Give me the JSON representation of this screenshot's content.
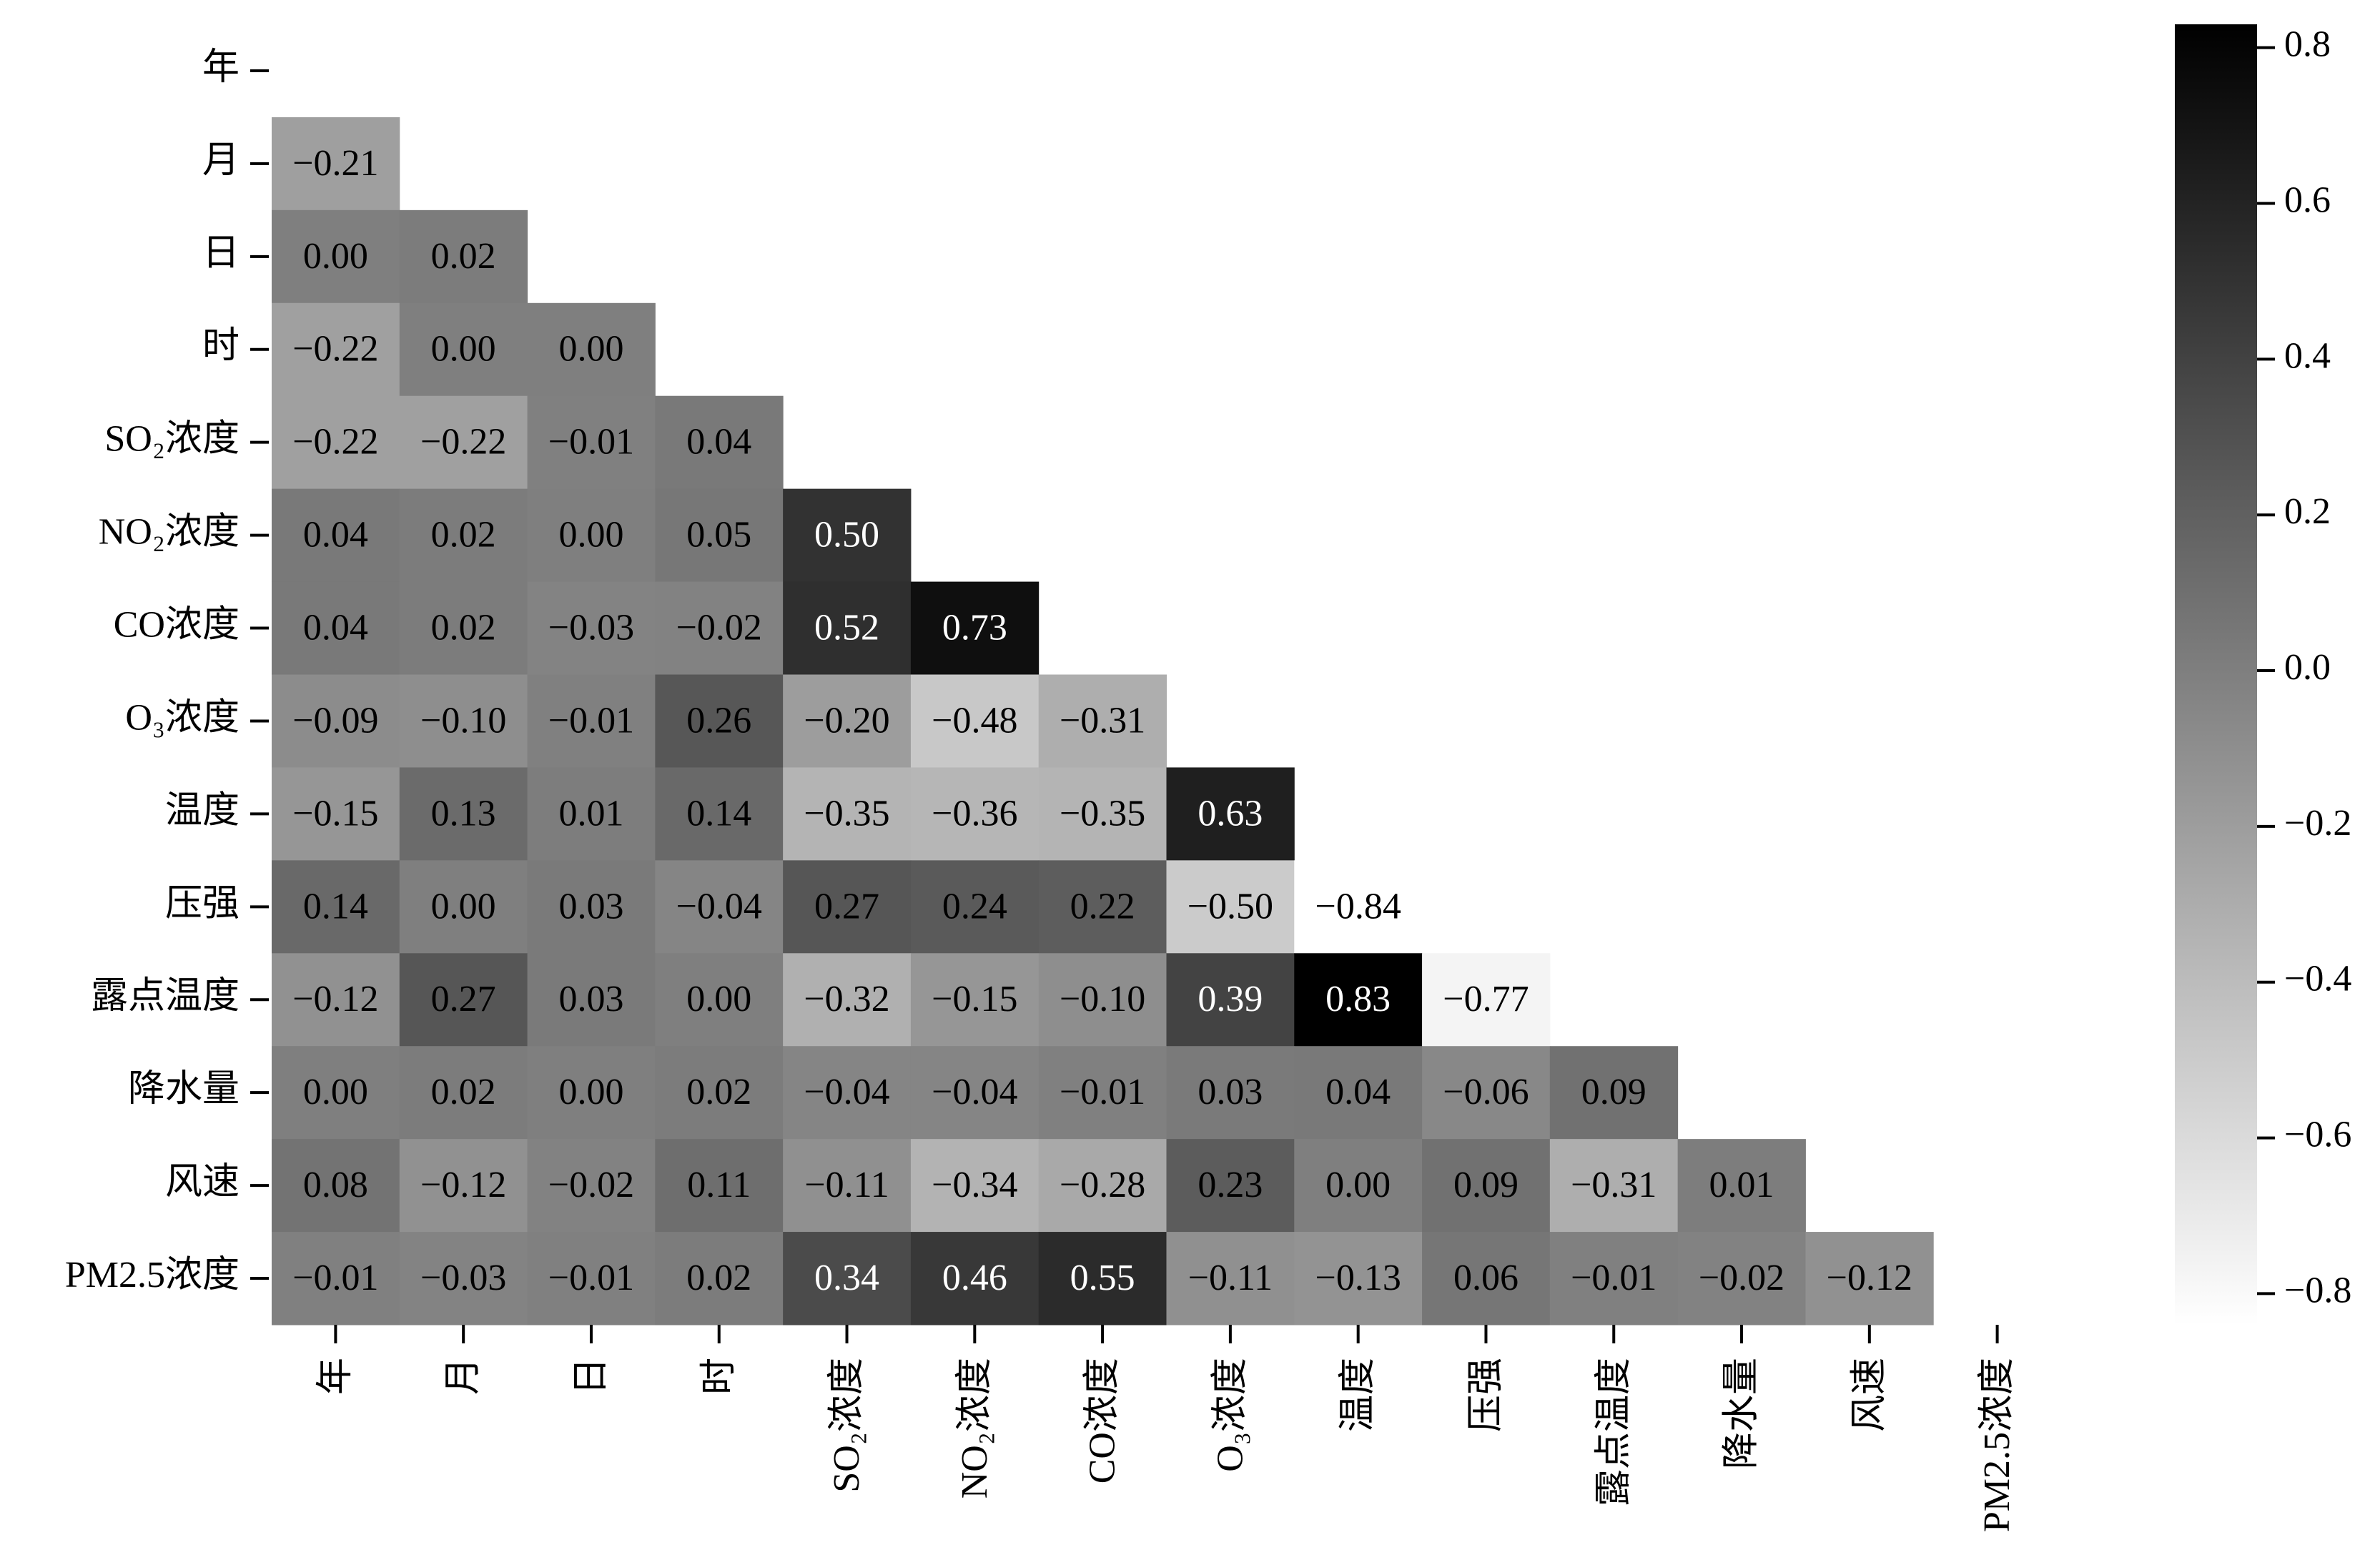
{
  "chart_data": {
    "type": "heatmap",
    "categories": [
      "年",
      "月",
      "日",
      "时",
      "SO₂浓度",
      "NO₂浓度",
      "CO浓度",
      "O₃浓度",
      "温度",
      "压强",
      "露点温度",
      "降水量",
      "风速",
      "PM2.5浓度"
    ],
    "values": [
      [
        null,
        null,
        null,
        null,
        null,
        null,
        null,
        null,
        null,
        null,
        null,
        null,
        null,
        null
      ],
      [
        -0.21,
        null,
        null,
        null,
        null,
        null,
        null,
        null,
        null,
        null,
        null,
        null,
        null,
        null
      ],
      [
        0.0,
        0.02,
        null,
        null,
        null,
        null,
        null,
        null,
        null,
        null,
        null,
        null,
        null,
        null
      ],
      [
        -0.22,
        0.0,
        0.0,
        null,
        null,
        null,
        null,
        null,
        null,
        null,
        null,
        null,
        null,
        null
      ],
      [
        -0.22,
        -0.22,
        -0.01,
        0.04,
        null,
        null,
        null,
        null,
        null,
        null,
        null,
        null,
        null,
        null
      ],
      [
        0.04,
        0.02,
        0.0,
        0.05,
        0.5,
        null,
        null,
        null,
        null,
        null,
        null,
        null,
        null,
        null
      ],
      [
        0.04,
        0.02,
        -0.03,
        -0.02,
        0.52,
        0.73,
        null,
        null,
        null,
        null,
        null,
        null,
        null,
        null
      ],
      [
        -0.09,
        -0.1,
        -0.01,
        0.26,
        -0.2,
        -0.48,
        -0.31,
        null,
        null,
        null,
        null,
        null,
        null,
        null
      ],
      [
        -0.15,
        0.13,
        0.01,
        0.14,
        -0.35,
        -0.36,
        -0.35,
        0.63,
        null,
        null,
        null,
        null,
        null,
        null
      ],
      [
        0.14,
        0.0,
        0.03,
        -0.04,
        0.27,
        0.24,
        0.22,
        -0.5,
        -0.84,
        null,
        null,
        null,
        null,
        null
      ],
      [
        -0.12,
        0.27,
        0.03,
        0.0,
        -0.32,
        -0.15,
        -0.1,
        0.39,
        0.83,
        -0.77,
        null,
        null,
        null,
        null
      ],
      [
        0.0,
        0.02,
        0.0,
        0.02,
        -0.04,
        -0.04,
        -0.01,
        0.03,
        0.04,
        -0.06,
        0.09,
        null,
        null,
        null
      ],
      [
        0.08,
        -0.12,
        -0.02,
        0.11,
        -0.11,
        -0.34,
        -0.28,
        0.23,
        0.0,
        0.09,
        -0.31,
        0.01,
        null,
        null
      ],
      [
        -0.01,
        -0.03,
        -0.01,
        0.02,
        0.34,
        0.46,
        0.55,
        -0.11,
        -0.13,
        0.06,
        -0.01,
        -0.02,
        -0.12,
        null
      ]
    ],
    "value_labels": [
      [
        null,
        null,
        null,
        null,
        null,
        null,
        null,
        null,
        null,
        null,
        null,
        null,
        null,
        null
      ],
      [
        "−0.21",
        null,
        null,
        null,
        null,
        null,
        null,
        null,
        null,
        null,
        null,
        null,
        null,
        null
      ],
      [
        "0.00",
        "0.02",
        null,
        null,
        null,
        null,
        null,
        null,
        null,
        null,
        null,
        null,
        null,
        null
      ],
      [
        "−0.22",
        "0.00",
        "0.00",
        null,
        null,
        null,
        null,
        null,
        null,
        null,
        null,
        null,
        null,
        null
      ],
      [
        "−0.22",
        "−0.22",
        "−0.01",
        "0.04",
        null,
        null,
        null,
        null,
        null,
        null,
        null,
        null,
        null,
        null
      ],
      [
        "0.04",
        "0.02",
        "0.00",
        "0.05",
        "0.50",
        null,
        null,
        null,
        null,
        null,
        null,
        null,
        null,
        null
      ],
      [
        "0.04",
        "0.02",
        "−0.03",
        "−0.02",
        "0.52",
        "0.73",
        null,
        null,
        null,
        null,
        null,
        null,
        null,
        null
      ],
      [
        "−0.09",
        "−0.10",
        "−0.01",
        "0.26",
        "−0.20",
        "−0.48",
        "−0.31",
        null,
        null,
        null,
        null,
        null,
        null,
        null
      ],
      [
        "−0.15",
        "0.13",
        "0.01",
        "0.14",
        "−0.35",
        "−0.36",
        "−0.35",
        "0.63",
        null,
        null,
        null,
        null,
        null,
        null
      ],
      [
        "0.14",
        "0.00",
        "0.03",
        "−0.04",
        "0.27",
        "0.24",
        "0.22",
        "−0.50",
        "−0.84",
        null,
        null,
        null,
        null,
        null
      ],
      [
        "−0.12",
        "0.27",
        "0.03",
        "0.00",
        "−0.32",
        "−0.15",
        "−0.10",
        "0.39",
        "0.83",
        "−0.77",
        null,
        null,
        null,
        null
      ],
      [
        "0.00",
        "0.02",
        "0.00",
        "0.02",
        "−0.04",
        "−0.04",
        "−0.01",
        "0.03",
        "0.04",
        "−0.06",
        "0.09",
        null,
        null,
        null
      ],
      [
        "0.08",
        "−0.12",
        "−0.02",
        "0.11",
        "−0.11",
        "−0.34",
        "−0.28",
        "0.23",
        "0.00",
        "0.09",
        "−0.31",
        "0.01",
        null,
        null
      ],
      [
        "−0.01",
        "−0.03",
        "−0.01",
        "0.02",
        "0.34",
        "0.46",
        "0.55",
        "−0.11",
        "−0.13",
        "0.06",
        "−0.01",
        "−0.02",
        "−0.12",
        null
      ]
    ],
    "colormap": "gray_r",
    "clim": [
      -0.84,
      0.83
    ],
    "cticks": [
      0.8,
      0.6,
      0.4,
      0.2,
      {
        "value": 0.0,
        "label": "0.0"
      },
      {
        "value": -0.2,
        "label": "−0.2"
      },
      {
        "value": -0.4,
        "label": "−0.4"
      },
      {
        "value": -0.6,
        "label": "−0.6"
      },
      {
        "value": -0.8,
        "label": "−0.8"
      }
    ]
  }
}
